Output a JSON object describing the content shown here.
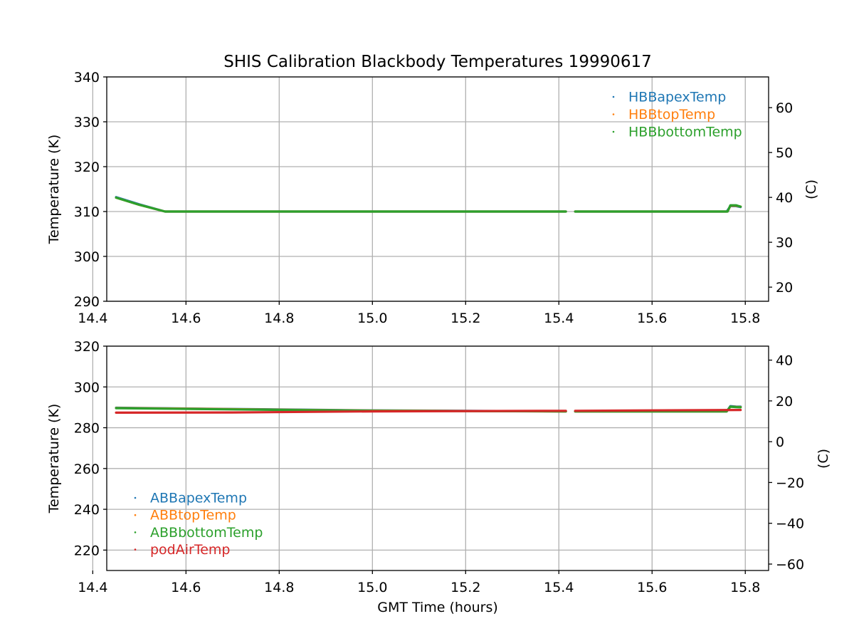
{
  "chart_data": [
    {
      "type": "scatter",
      "title": "SHIS Calibration Blackbody Temperatures 19990617",
      "xlabel": "",
      "ylabel": "Temperature (K)",
      "y2label": "(C)",
      "xlim": [
        14.43,
        15.85
      ],
      "ylim": [
        290,
        340
      ],
      "y2lim": [
        16.85,
        66.85
      ],
      "xticks": [
        "14.4",
        "14.6",
        "14.8",
        "15.0",
        "15.2",
        "15.4",
        "15.6",
        "15.8"
      ],
      "xtick_values": [
        14.4,
        14.6,
        14.8,
        15.0,
        15.2,
        15.4,
        15.6,
        15.8
      ],
      "yticks": [
        "290",
        "300",
        "310",
        "320",
        "330",
        "340"
      ],
      "ytick_values": [
        290,
        300,
        310,
        320,
        330,
        340
      ],
      "y2ticks": [
        "20",
        "30",
        "40",
        "50",
        "60"
      ],
      "y2tick_values": [
        20,
        30,
        40,
        50,
        60
      ],
      "grid": true,
      "legend_position": "top-right",
      "series": [
        {
          "name": "HBBapexTemp",
          "color": "#1f77b4",
          "segments": [
            [
              [
                14.45,
                313.2
              ],
              [
                14.5,
                311.6
              ],
              [
                14.555,
                310.0
              ],
              [
                15.0,
                310.0
              ],
              [
                15.415,
                310.0
              ]
            ],
            [
              [
                15.435,
                310.0
              ],
              [
                15.76,
                310.0
              ],
              [
                15.768,
                311.2
              ],
              [
                15.78,
                311.2
              ],
              [
                15.79,
                311.0
              ]
            ]
          ]
        },
        {
          "name": "HBBtopTemp",
          "color": "#ff7f0e",
          "segments": [
            [
              [
                14.45,
                313.1
              ],
              [
                14.5,
                311.5
              ],
              [
                14.555,
                310.0
              ],
              [
                15.0,
                310.0
              ],
              [
                15.415,
                310.0
              ]
            ],
            [
              [
                15.435,
                310.0
              ],
              [
                15.762,
                310.0
              ],
              [
                15.768,
                311.3
              ],
              [
                15.78,
                311.3
              ],
              [
                15.79,
                311.1
              ]
            ]
          ]
        },
        {
          "name": "HBBbottomTemp",
          "color": "#2ca02c",
          "segments": [
            [
              [
                14.45,
                313.1
              ],
              [
                14.5,
                311.5
              ],
              [
                14.555,
                310.0
              ],
              [
                15.0,
                310.0
              ],
              [
                15.415,
                310.0
              ]
            ],
            [
              [
                15.435,
                310.0
              ],
              [
                15.762,
                310.0
              ],
              [
                15.768,
                311.4
              ],
              [
                15.78,
                311.4
              ],
              [
                15.79,
                311.1
              ]
            ]
          ]
        }
      ]
    },
    {
      "type": "scatter",
      "title": "",
      "xlabel": "GMT Time (hours)",
      "ylabel": "Temperature (K)",
      "y2label": "(C)",
      "xlim": [
        14.43,
        15.85
      ],
      "ylim": [
        210,
        320
      ],
      "y2lim": [
        -63.15,
        46.85
      ],
      "xticks": [
        "14.4",
        "14.6",
        "14.8",
        "15.0",
        "15.2",
        "15.4",
        "15.6",
        "15.8"
      ],
      "xtick_values": [
        14.4,
        14.6,
        14.8,
        15.0,
        15.2,
        15.4,
        15.6,
        15.8
      ],
      "yticks": [
        "220",
        "240",
        "260",
        "280",
        "300",
        "320"
      ],
      "ytick_values": [
        220,
        240,
        260,
        280,
        300,
        320
      ],
      "y2ticks": [
        "−60",
        "−40",
        "−20",
        "0",
        "20",
        "40"
      ],
      "y2tick_values": [
        -60,
        -40,
        -20,
        0,
        20,
        40
      ],
      "grid": true,
      "legend_position": "lower-left",
      "series": [
        {
          "name": "ABBapexTemp",
          "color": "#1f77b4",
          "segments": [
            [
              [
                14.45,
                289.8
              ],
              [
                14.7,
                289.2
              ],
              [
                15.0,
                288.5
              ],
              [
                15.415,
                288.0
              ]
            ],
            [
              [
                15.435,
                288.0
              ],
              [
                15.76,
                288.0
              ],
              [
                15.768,
                290.6
              ],
              [
                15.78,
                290.4
              ],
              [
                15.79,
                290.3
              ]
            ]
          ]
        },
        {
          "name": "ABBtopTemp",
          "color": "#ff7f0e",
          "segments": [
            [
              [
                14.45,
                289.7
              ],
              [
                14.7,
                289.1
              ],
              [
                15.0,
                288.4
              ],
              [
                15.415,
                288.0
              ]
            ],
            [
              [
                15.435,
                288.0
              ],
              [
                15.76,
                288.0
              ],
              [
                15.768,
                290.3
              ],
              [
                15.78,
                290.2
              ],
              [
                15.79,
                290.1
              ]
            ]
          ]
        },
        {
          "name": "ABBbottomTemp",
          "color": "#2ca02c",
          "segments": [
            [
              [
                14.45,
                289.6
              ],
              [
                14.7,
                289.0
              ],
              [
                15.0,
                288.3
              ],
              [
                15.415,
                288.0
              ]
            ],
            [
              [
                15.435,
                288.0
              ],
              [
                15.76,
                288.0
              ],
              [
                15.768,
                290.3
              ],
              [
                15.78,
                290.1
              ],
              [
                15.79,
                290.0
              ]
            ]
          ]
        },
        {
          "name": "podAirTemp",
          "color": "#d62728",
          "segments": [
            [
              [
                14.45,
                287.4
              ],
              [
                14.7,
                287.5
              ],
              [
                15.0,
                288.0
              ],
              [
                15.415,
                288.3
              ]
            ],
            [
              [
                15.435,
                288.3
              ],
              [
                15.6,
                288.5
              ],
              [
                15.79,
                288.7
              ]
            ]
          ]
        }
      ]
    }
  ]
}
